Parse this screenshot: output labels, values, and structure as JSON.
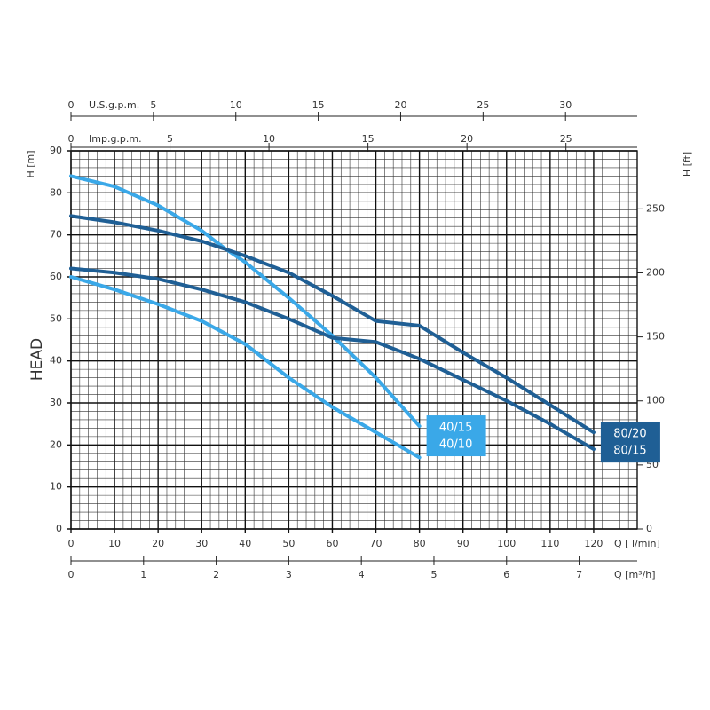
{
  "chart_data": {
    "type": "line",
    "ylabel": "H [m]",
    "y2label": "H [ft]",
    "annotation": "HEAD",
    "xlabel": "Q [ l/min]",
    "xlim": [
      0,
      130
    ],
    "xticks": [
      0,
      10,
      20,
      30,
      40,
      50,
      60,
      70,
      80,
      90,
      100,
      110,
      120
    ],
    "ylim": [
      0,
      90
    ],
    "yticks": [
      0,
      10,
      20,
      30,
      40,
      50,
      60,
      70,
      80,
      90
    ],
    "y2lim": [
      0,
      295.3
    ],
    "y2ticks": [
      0,
      50,
      100,
      150,
      200,
      250
    ],
    "grid": true,
    "extra_x_axes": [
      {
        "label": "U.S.g.p.m.",
        "lim": [
          0,
          34.35
        ],
        "ticks": [
          0,
          5,
          10,
          15,
          20,
          25,
          30
        ],
        "position": "top"
      },
      {
        "label": "Imp.g.p.m.",
        "lim": [
          0,
          28.6
        ],
        "ticks": [
          0,
          5,
          10,
          15,
          20,
          25
        ],
        "position": "top"
      },
      {
        "label": "Q [m³/h]",
        "lim": [
          0,
          7.8
        ],
        "ticks": [
          0,
          1,
          2,
          3,
          4,
          5,
          6,
          7
        ],
        "position": "bottom"
      }
    ],
    "series": [
      {
        "name": "40/15",
        "color": "#3aa8e8",
        "x": [
          0,
          10,
          20,
          30,
          35,
          40,
          50,
          60,
          70,
          80
        ],
        "values": [
          84,
          81.5,
          77,
          71,
          67,
          63.5,
          55,
          46,
          36,
          24.5
        ]
      },
      {
        "name": "40/10",
        "color": "#3aa8e8",
        "x": [
          0,
          10,
          20,
          30,
          40,
          50,
          60,
          70,
          80
        ],
        "values": [
          60,
          57,
          53.5,
          49.5,
          44,
          36,
          29,
          23,
          17
        ]
      },
      {
        "name": "80/20",
        "color": "#1f5f95",
        "x": [
          0,
          10,
          20,
          30,
          40,
          50,
          60,
          70,
          80,
          90,
          100,
          110,
          120
        ],
        "values": [
          74.5,
          73,
          71,
          68.5,
          65,
          61,
          55.5,
          49.5,
          48.4,
          42,
          36,
          29.5,
          23
        ]
      },
      {
        "name": "80/15",
        "color": "#1f5f95",
        "x": [
          0,
          10,
          20,
          30,
          40,
          50,
          60,
          70,
          80,
          90,
          100,
          110,
          120
        ],
        "values": [
          62,
          61,
          59.5,
          57,
          54,
          50,
          45.5,
          44.5,
          40.5,
          35.5,
          30.5,
          25,
          19
        ]
      }
    ]
  }
}
